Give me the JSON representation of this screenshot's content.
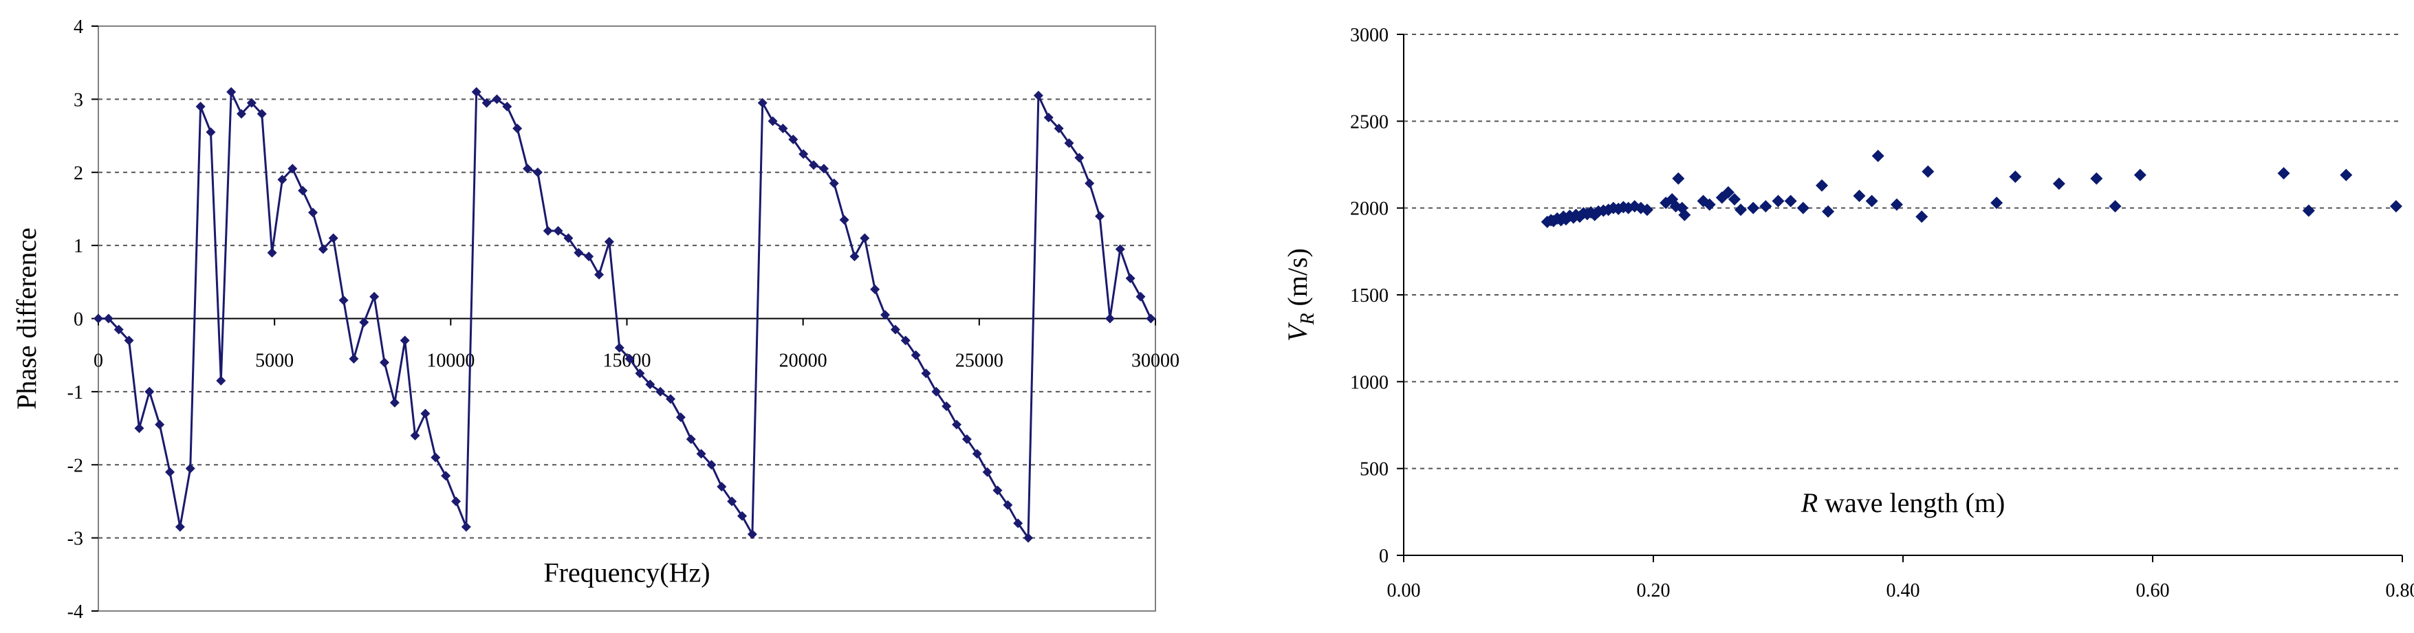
{
  "chart_data": [
    {
      "type": "line",
      "title": "",
      "xlabel": "Frequency(Hz)",
      "ylabel": "Phase difference",
      "xlim": [
        0,
        30000
      ],
      "ylim": [
        -4,
        4
      ],
      "xticks": [
        0,
        5000,
        10000,
        15000,
        20000,
        25000,
        30000
      ],
      "yticks": [
        -4,
        -3,
        -2,
        -1,
        0,
        1,
        2,
        3,
        4
      ],
      "grid": "horizontal-dashed",
      "color": "#1a1a6e",
      "series": [
        {
          "x": [
            0,
            290,
            580,
            870,
            1160,
            1450,
            1740,
            2030,
            2320,
            2610,
            2900,
            3190,
            3480,
            3770,
            4060,
            4350,
            4640,
            4930,
            5220,
            5510,
            5800,
            6090,
            6380,
            6670,
            6960,
            7250,
            7540,
            7830,
            8120,
            8410,
            8700,
            8990,
            9280,
            9570,
            9860,
            10150,
            10440,
            10730,
            11020,
            11310,
            11600,
            11890,
            12180,
            12470,
            12760,
            13050,
            13340,
            13630,
            13920,
            14210,
            14500,
            14790,
            15080,
            15370,
            15660,
            15950,
            16240,
            16530,
            16820,
            17110,
            17400,
            17690,
            17980,
            18270,
            18560,
            18850,
            19140,
            19430,
            19720,
            20010,
            20300,
            20590,
            20880,
            21170,
            21460,
            21750,
            22040,
            22330,
            22620,
            22910,
            23200,
            23490,
            23780,
            24070,
            24360,
            24650,
            24940,
            25230,
            25520,
            25810,
            26100,
            26390,
            26680,
            26970,
            27260,
            27550,
            27840,
            28130,
            28420,
            28710,
            29000,
            29290,
            29580,
            29870
          ],
          "y": [
            0,
            0,
            -0.15,
            -0.3,
            -1.5,
            -1.0,
            -1.45,
            -2.1,
            -2.85,
            -2.05,
            2.9,
            2.55,
            -0.85,
            3.1,
            2.8,
            2.95,
            2.8,
            0.9,
            1.9,
            2.05,
            1.75,
            1.45,
            0.95,
            1.1,
            0.25,
            -0.55,
            -0.05,
            0.3,
            -0.6,
            -1.15,
            -0.3,
            -1.6,
            -1.3,
            -1.9,
            -2.15,
            -2.5,
            -2.85,
            3.1,
            2.95,
            3.0,
            2.9,
            2.6,
            2.05,
            2.0,
            1.2,
            1.2,
            1.1,
            0.9,
            0.85,
            0.6,
            1.05,
            -0.4,
            -0.55,
            -0.75,
            -0.9,
            -1.0,
            -1.1,
            -1.35,
            -1.65,
            -1.85,
            -2.0,
            -2.3,
            -2.5,
            -2.7,
            -2.95,
            2.95,
            2.7,
            2.6,
            2.45,
            2.25,
            2.1,
            2.05,
            1.85,
            1.35,
            0.85,
            1.1,
            0.4,
            0.05,
            -0.15,
            -0.3,
            -0.5,
            -0.75,
            -1.0,
            -1.2,
            -1.45,
            -1.65,
            -1.85,
            -2.1,
            -2.35,
            -2.55,
            -2.8,
            -3.0,
            3.05,
            2.75,
            2.6,
            2.4,
            2.2,
            1.85,
            1.4,
            0.0,
            0.95,
            0.55,
            0.3,
            0.0
          ]
        }
      ]
    },
    {
      "type": "scatter",
      "title": "",
      "xlabel": "R wave length (m)",
      "ylabel": "V_R (m/s)",
      "xlim": [
        0,
        0.8
      ],
      "ylim": [
        0,
        3000
      ],
      "xticks": [
        "0.00",
        "0.20",
        "0.40",
        "0.60",
        "0.80"
      ],
      "yticks": [
        0,
        500,
        1000,
        1500,
        2000,
        2500,
        3000
      ],
      "grid": "horizontal-dashed",
      "color": "#0a1a6e",
      "points": [
        [
          0.115,
          1920
        ],
        [
          0.118,
          1930
        ],
        [
          0.12,
          1925
        ],
        [
          0.123,
          1940
        ],
        [
          0.126,
          1930
        ],
        [
          0.128,
          1950
        ],
        [
          0.13,
          1935
        ],
        [
          0.133,
          1955
        ],
        [
          0.136,
          1945
        ],
        [
          0.138,
          1960
        ],
        [
          0.141,
          1950
        ],
        [
          0.144,
          1970
        ],
        [
          0.147,
          1965
        ],
        [
          0.15,
          1975
        ],
        [
          0.153,
          1960
        ],
        [
          0.156,
          1980
        ],
        [
          0.16,
          1985
        ],
        [
          0.164,
          1990
        ],
        [
          0.168,
          2000
        ],
        [
          0.172,
          1995
        ],
        [
          0.176,
          2005
        ],
        [
          0.18,
          2000
        ],
        [
          0.185,
          2010
        ],
        [
          0.19,
          2000
        ],
        [
          0.195,
          1990
        ],
        [
          0.21,
          2030
        ],
        [
          0.215,
          2050
        ],
        [
          0.218,
          2010
        ],
        [
          0.22,
          2170
        ],
        [
          0.223,
          2000
        ],
        [
          0.225,
          1960
        ],
        [
          0.24,
          2040
        ],
        [
          0.245,
          2020
        ],
        [
          0.255,
          2060
        ],
        [
          0.26,
          2090
        ],
        [
          0.265,
          2050
        ],
        [
          0.27,
          1990
        ],
        [
          0.28,
          2000
        ],
        [
          0.29,
          2010
        ],
        [
          0.3,
          2040
        ],
        [
          0.31,
          2040
        ],
        [
          0.32,
          2000
        ],
        [
          0.335,
          2130
        ],
        [
          0.34,
          1980
        ],
        [
          0.365,
          2070
        ],
        [
          0.375,
          2040
        ],
        [
          0.38,
          2300
        ],
        [
          0.395,
          2020
        ],
        [
          0.415,
          1950
        ],
        [
          0.42,
          2210
        ],
        [
          0.475,
          2030
        ],
        [
          0.49,
          2180
        ],
        [
          0.525,
          2140
        ],
        [
          0.555,
          2170
        ],
        [
          0.57,
          2010
        ],
        [
          0.59,
          2190
        ],
        [
          0.705,
          2200
        ],
        [
          0.725,
          1985
        ],
        [
          0.755,
          2190
        ],
        [
          0.795,
          2010
        ]
      ]
    }
  ]
}
